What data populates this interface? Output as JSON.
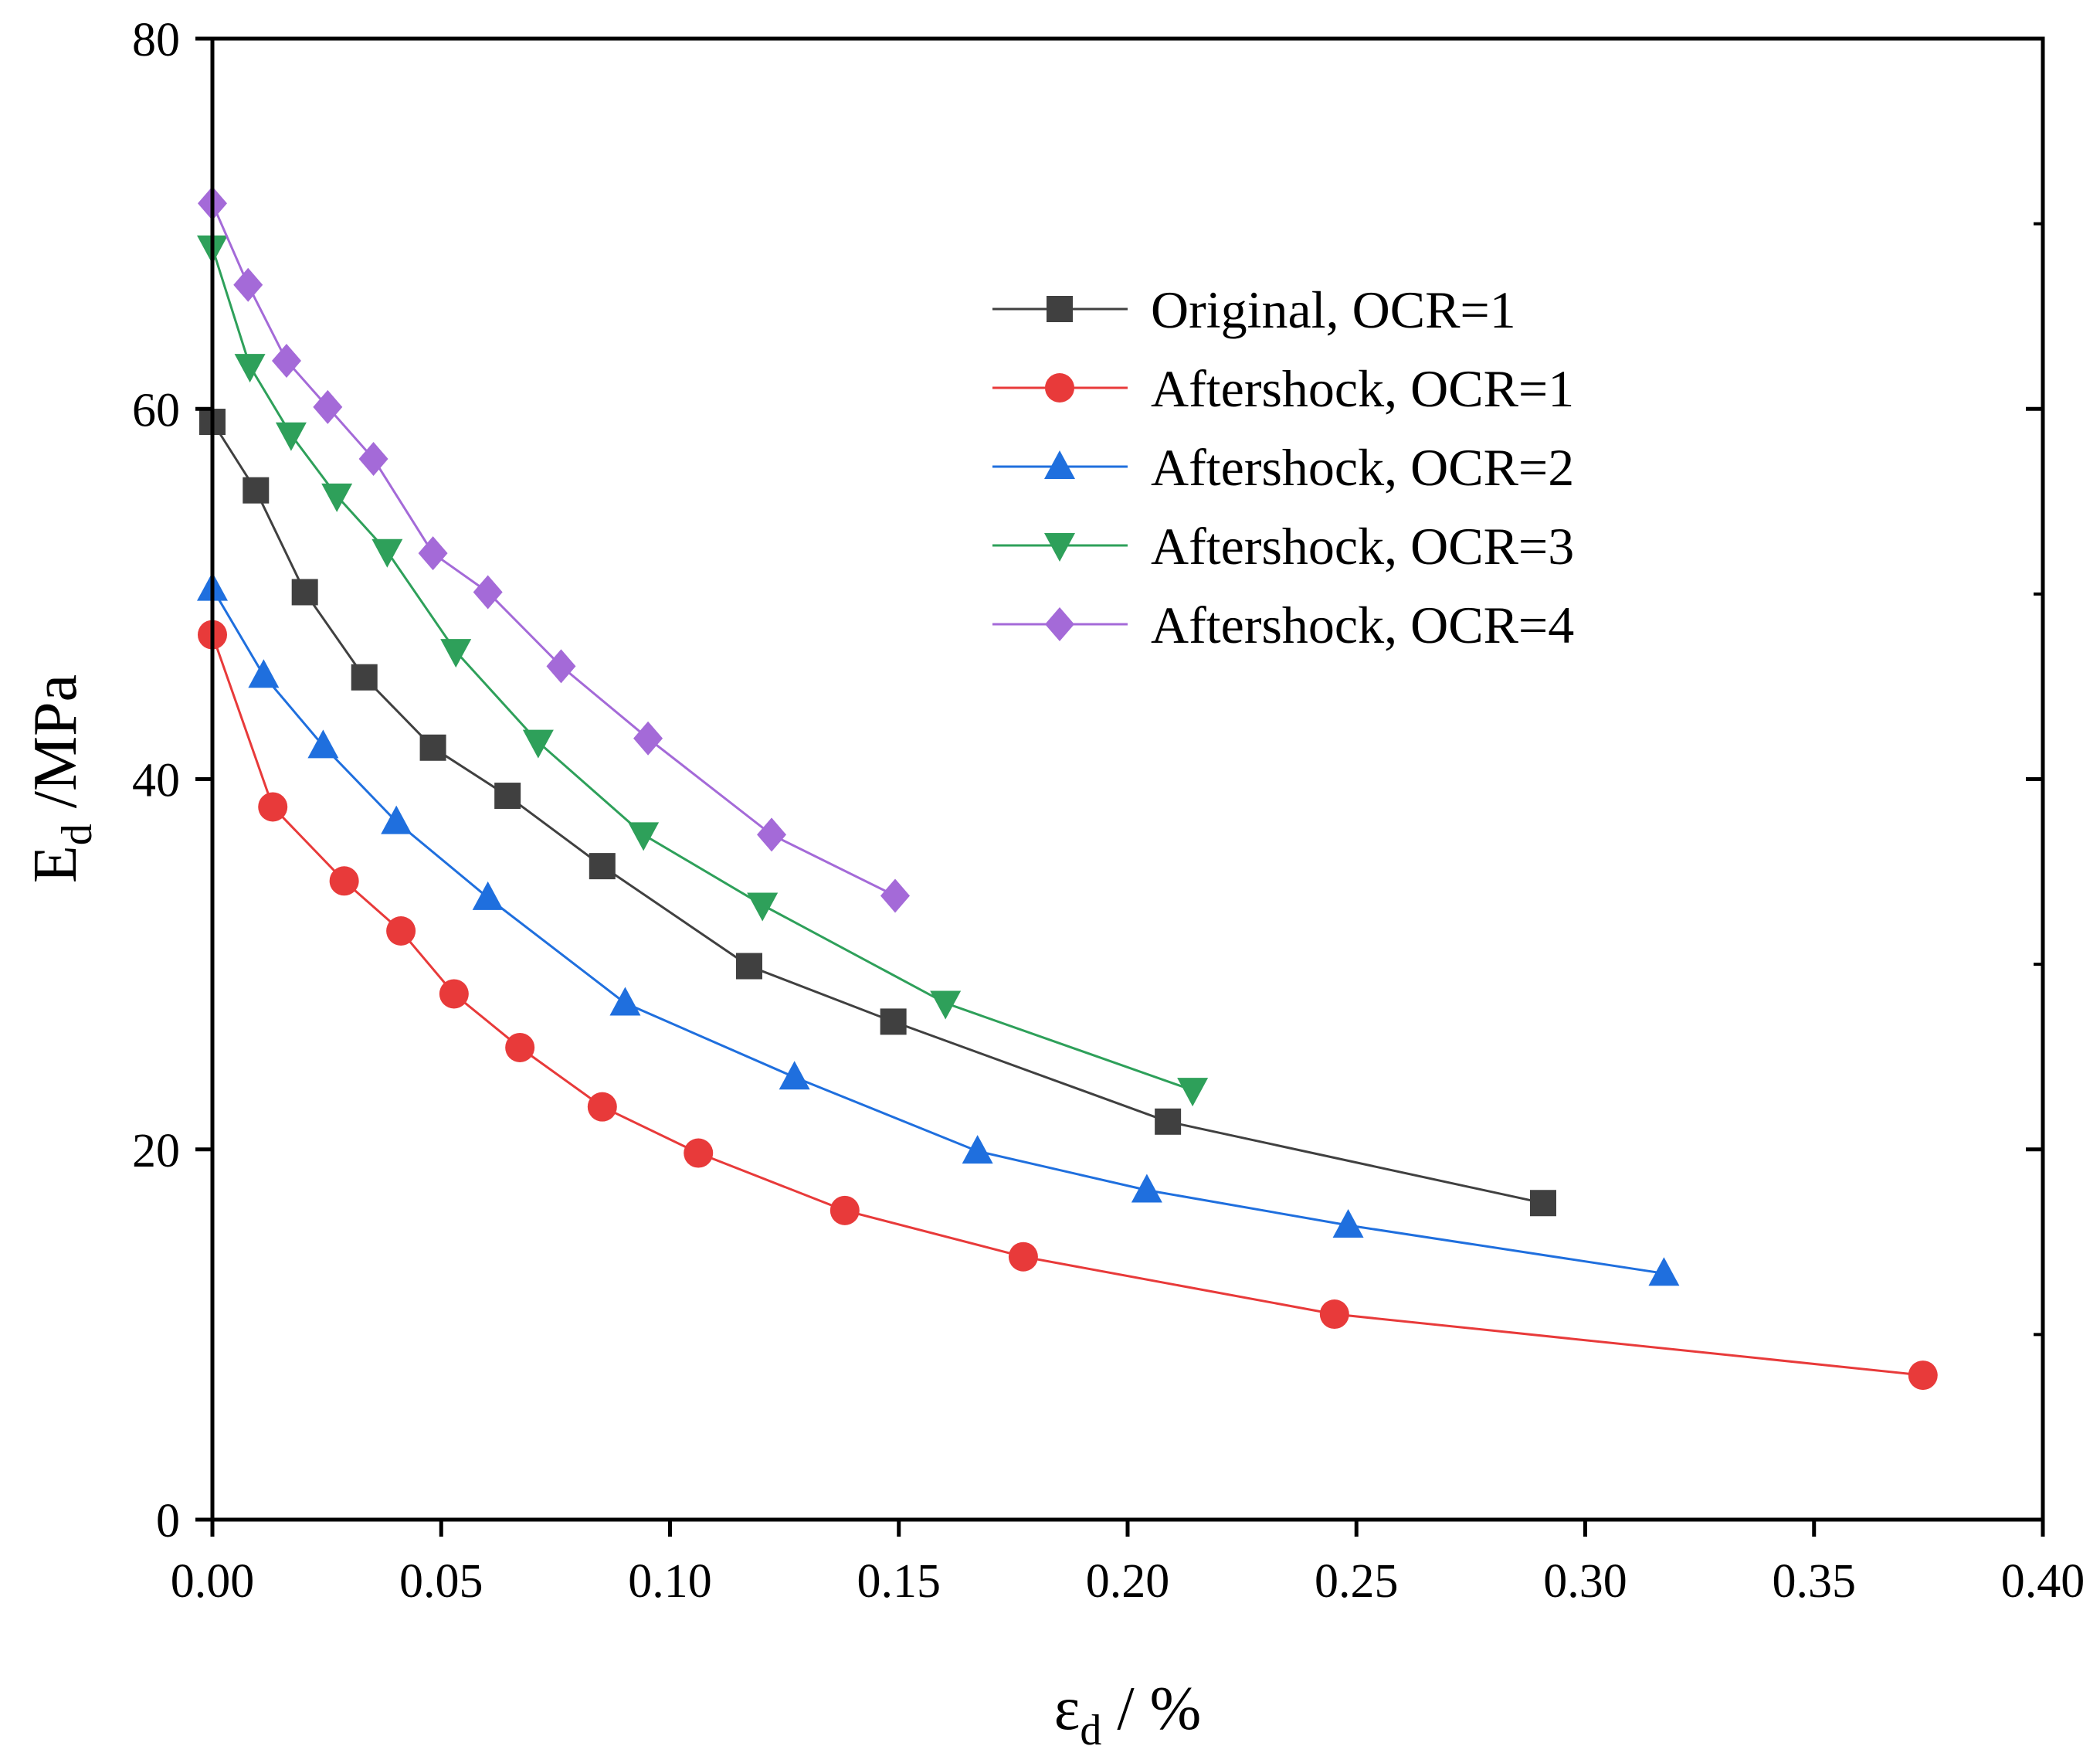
{
  "chart_data": {
    "type": "line",
    "title": "",
    "xlabel": {
      "main": "ε",
      "sub": "d",
      "suffix": " / %"
    },
    "ylabel": {
      "main": "E",
      "sub": "d",
      "suffix": " /MPa"
    },
    "xlim": [
      0,
      0.4
    ],
    "ylim": [
      0,
      80
    ],
    "x_ticks": [
      0,
      0.05,
      0.1,
      0.15,
      0.2,
      0.25,
      0.3,
      0.35,
      0.4
    ],
    "x_tick_labels": [
      "0.00",
      "0.05",
      "0.10",
      "0.15",
      "0.20",
      "0.25",
      "0.30",
      "0.35",
      "0.40"
    ],
    "y_ticks": [
      0,
      20,
      40,
      60,
      80
    ],
    "y_tick_labels": [
      "0",
      "20",
      "40",
      "60",
      "80"
    ],
    "grid": false,
    "legend_position": "top-right",
    "series": [
      {
        "name": "Original, OCR=1",
        "color": "#404040",
        "marker": "square",
        "x": [
          0.0,
          0.0095,
          0.0202,
          0.0332,
          0.0482,
          0.0645,
          0.0852,
          0.1173,
          0.1488,
          0.2088,
          0.2908
        ],
        "y": [
          59.3,
          55.6,
          50.1,
          45.5,
          41.7,
          39.1,
          35.3,
          29.9,
          26.9,
          21.5,
          17.1
        ]
      },
      {
        "name": "Aftershock, OCR=1",
        "color": "#e83a3a",
        "marker": "circle",
        "x": [
          0.0,
          0.0132,
          0.0288,
          0.0412,
          0.0528,
          0.0672,
          0.0852,
          0.1062,
          0.1382,
          0.1772,
          0.2452,
          0.3738
        ],
        "y": [
          47.8,
          38.5,
          34.5,
          31.8,
          28.4,
          25.5,
          22.3,
          19.8,
          16.7,
          14.2,
          11.1,
          7.8
        ]
      },
      {
        "name": "Aftershock, OCR=2",
        "color": "#1f6fde",
        "marker": "triangle-up",
        "x": [
          0.0,
          0.0112,
          0.0242,
          0.0402,
          0.0602,
          0.0902,
          0.1272,
          0.1672,
          0.2042,
          0.2482,
          0.3172
        ],
        "y": [
          50.3,
          45.6,
          41.8,
          37.7,
          33.6,
          27.9,
          23.9,
          19.9,
          17.8,
          15.9,
          13.3
        ]
      },
      {
        "name": "Aftershock, OCR=3",
        "color": "#2ea05a",
        "marker": "triangle-down",
        "x": [
          0.0,
          0.0082,
          0.0172,
          0.0272,
          0.0382,
          0.0532,
          0.0712,
          0.0942,
          0.1202,
          0.1602,
          0.2142
        ],
        "y": [
          68.7,
          62.3,
          58.6,
          55.3,
          52.3,
          46.9,
          42.0,
          37.0,
          33.2,
          27.9,
          23.2
        ]
      },
      {
        "name": "Aftershock, OCR=4",
        "color": "#a46ad8",
        "marker": "diamond",
        "x": [
          0.0,
          0.0078,
          0.0162,
          0.0252,
          0.0352,
          0.0482,
          0.0602,
          0.0762,
          0.0952,
          0.1222,
          0.1492
        ],
        "y": [
          71.1,
          66.7,
          62.6,
          60.1,
          57.3,
          52.2,
          50.1,
          46.1,
          42.2,
          37.0,
          33.7
        ]
      }
    ]
  }
}
